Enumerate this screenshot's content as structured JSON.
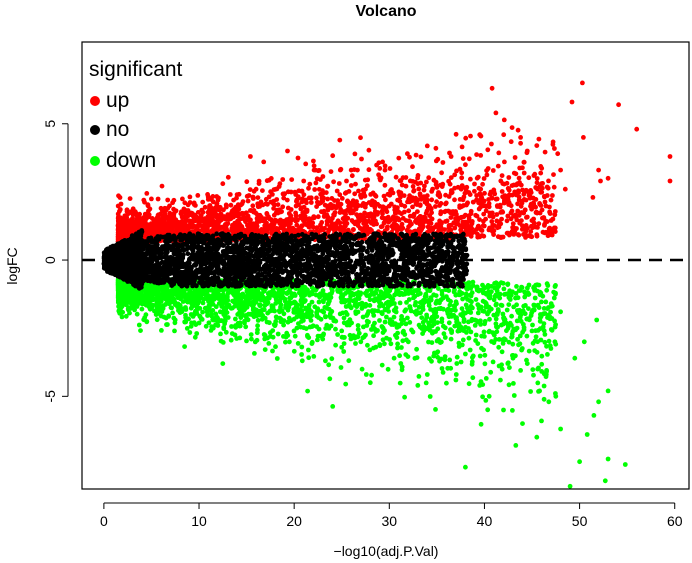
{
  "chart_data": {
    "type": "scatter",
    "title": "Volcano",
    "xlabel": "−log10(adj.P.Val)",
    "ylabel": "logFC",
    "xlim": [
      -2.3,
      61.5
    ],
    "ylim": [
      -8.4,
      8.0
    ],
    "x_ticks": [
      0,
      10,
      20,
      30,
      40,
      50,
      60
    ],
    "y_ticks": [
      -5,
      0,
      5
    ],
    "grid": false,
    "reference_line": {
      "y": 0,
      "style": "dashed"
    },
    "legend": {
      "title": "significant",
      "placement": "top-left",
      "entries": [
        {
          "label": "up",
          "color": "#ff0000"
        },
        {
          "label": "no",
          "color": "#000000"
        },
        {
          "label": "down",
          "color": "#00ff00"
        }
      ]
    },
    "series": [
      {
        "name": "up",
        "color": "#ff0000",
        "points": [
          [
            40.8,
            6.3
          ],
          [
            50.3,
            6.5
          ],
          [
            54.1,
            5.7
          ],
          [
            49.2,
            5.8
          ],
          [
            41.2,
            5.4
          ],
          [
            56.0,
            4.8
          ],
          [
            59.5,
            3.8
          ],
          [
            59.5,
            2.9
          ],
          [
            43.8,
            4.5
          ],
          [
            50.4,
            4.5
          ],
          [
            44.5,
            4.0
          ],
          [
            45.5,
            4.2
          ],
          [
            47.7,
            3.9
          ],
          [
            48.0,
            3.3
          ],
          [
            52.0,
            3.3
          ],
          [
            53.0,
            3.0
          ],
          [
            52.2,
            2.9
          ],
          [
            51.4,
            2.3
          ],
          [
            39.5,
            4.6
          ],
          [
            34.9,
            4.1
          ],
          [
            31.9,
            3.9
          ],
          [
            24.8,
            4.4
          ],
          [
            19.3,
            4.0
          ],
          [
            15.4,
            3.8
          ],
          [
            16.8,
            3.6
          ],
          [
            29.3,
            3.6
          ],
          [
            36.5,
            3.8
          ],
          [
            42.1,
            3.6
          ],
          [
            26.0,
            3.3
          ],
          [
            22.1,
            3.3
          ],
          [
            12.5,
            2.8
          ],
          [
            38.0,
            3.5
          ],
          [
            35.5,
            3.2
          ],
          [
            45.2,
            3.1
          ],
          [
            46.0,
            2.8
          ],
          [
            44.2,
            2.5
          ],
          [
            41.0,
            2.5
          ],
          [
            42.5,
            2.2
          ],
          [
            40.0,
            2.0
          ],
          [
            38.5,
            2.4
          ],
          [
            37.8,
            2.0
          ],
          [
            36.2,
            1.8
          ],
          [
            47.0,
            2.2
          ],
          [
            48.5,
            2.6
          ],
          [
            43.5,
            1.8
          ],
          [
            34.0,
            2.2
          ],
          [
            33.0,
            2.8
          ],
          [
            31.0,
            2.5
          ],
          [
            29.0,
            3.0
          ],
          [
            27.5,
            2.6
          ],
          [
            25.5,
            2.9
          ],
          [
            23.5,
            2.7
          ],
          [
            21.0,
            2.9
          ],
          [
            18.5,
            2.8
          ],
          [
            16.0,
            2.6
          ],
          [
            14.0,
            2.4
          ],
          [
            11.0,
            2.3
          ],
          [
            8.5,
            2.1
          ],
          [
            6.0,
            1.9
          ],
          [
            4.2,
            2.2
          ]
        ]
      },
      {
        "name": "down",
        "color": "#00ff00",
        "points": [
          [
            49.0,
            -8.3
          ],
          [
            52.7,
            -8.1
          ],
          [
            38.0,
            -7.6
          ],
          [
            54.8,
            -7.5
          ],
          [
            50.0,
            -7.4
          ],
          [
            53.0,
            -7.3
          ],
          [
            43.3,
            -6.8
          ],
          [
            45.5,
            -6.5
          ],
          [
            48.0,
            -6.2
          ],
          [
            50.8,
            -6.4
          ],
          [
            44.0,
            -6.0
          ],
          [
            46.0,
            -5.9
          ],
          [
            51.5,
            -5.7
          ],
          [
            42.0,
            -5.5
          ],
          [
            40.5,
            -5.0
          ],
          [
            39.5,
            -4.6
          ],
          [
            37.0,
            -4.4
          ],
          [
            33.0,
            -4.6
          ],
          [
            28.0,
            -4.5
          ],
          [
            12.5,
            -3.8
          ],
          [
            48.0,
            -1.9
          ],
          [
            51.8,
            -2.2
          ],
          [
            47.4,
            -3.0
          ],
          [
            49.5,
            -3.6
          ],
          [
            46.5,
            -4.2
          ],
          [
            44.5,
            -3.8
          ],
          [
            43.0,
            -3.5
          ],
          [
            41.5,
            -3.2
          ],
          [
            40.0,
            -2.8
          ],
          [
            38.5,
            -3.3
          ],
          [
            36.5,
            -2.9
          ],
          [
            35.0,
            -3.4
          ],
          [
            33.5,
            -2.7
          ],
          [
            32.0,
            -3.0
          ],
          [
            30.5,
            -3.6
          ],
          [
            29.0,
            -3.1
          ],
          [
            27.0,
            -3.0
          ],
          [
            25.0,
            -3.2
          ],
          [
            23.0,
            -2.9
          ],
          [
            21.5,
            -3.3
          ],
          [
            19.5,
            -3.0
          ],
          [
            17.5,
            -2.8
          ],
          [
            15.5,
            -2.9
          ],
          [
            13.5,
            -2.7
          ],
          [
            11.5,
            -2.5
          ],
          [
            9.5,
            -2.3
          ],
          [
            7.5,
            -2.2
          ],
          [
            5.5,
            -2.0
          ],
          [
            4.0,
            -1.8
          ],
          [
            45.0,
            -2.6
          ],
          [
            42.5,
            -2.4
          ],
          [
            39.0,
            -2.2
          ],
          [
            37.5,
            -2.0
          ],
          [
            34.5,
            -2.1
          ],
          [
            31.5,
            -2.2
          ],
          [
            53.0,
            -4.8
          ],
          [
            52.0,
            -5.2
          ],
          [
            47.5,
            -5.0
          ],
          [
            45.8,
            -4.8
          ],
          [
            50.5,
            -3.0
          ]
        ]
      }
    ],
    "density_description_omitted": false
  }
}
